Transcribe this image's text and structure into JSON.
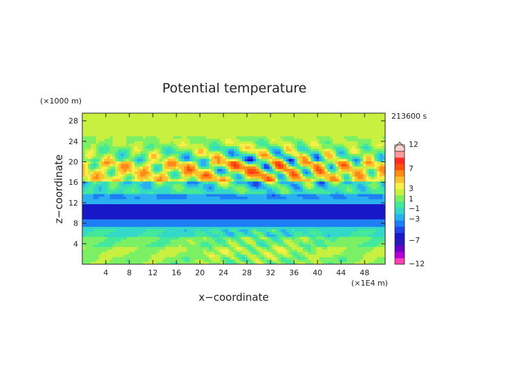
{
  "chart_data": {
    "type": "heatmap",
    "title": "Potential temperature",
    "xlabel": "x−coordinate",
    "ylabel": "z−coordinate",
    "x_unit": "(×1E4 m)",
    "y_unit": "(×1000 m)",
    "time_label": "213600 s",
    "xlim": [
      0,
      51.5
    ],
    "ylim": [
      0,
      29.5
    ],
    "x_ticks": [
      "4",
      "8",
      "12",
      "16",
      "20",
      "24",
      "28",
      "32",
      "36",
      "40",
      "44",
      "48"
    ],
    "y_ticks": [
      "4",
      "8",
      "12",
      "16",
      "20",
      "24",
      "28"
    ],
    "colorbar": {
      "levels": [
        -12,
        -11,
        -9,
        -7,
        -6,
        -5,
        -4,
        -3,
        -2,
        -1,
        0,
        1,
        2,
        3,
        5,
        7,
        9,
        11,
        12
      ],
      "colors": [
        "#ff3fb4",
        "#b000d6",
        "#6a00c8",
        "#2a1ab8",
        "#1818c8",
        "#1f45e6",
        "#1e7ef4",
        "#2ab0f0",
        "#34d8c8",
        "#44e89a",
        "#7cf064",
        "#c8f040",
        "#f8f04a",
        "#ffc030",
        "#ff8a18",
        "#ff5010",
        "#ff2a20",
        "#ff9a9a",
        "#ffd0d0"
      ],
      "tick_labels": [
        "12",
        "7",
        "3",
        "1",
        "−1",
        "−3",
        "−7",
        "−12"
      ]
    },
    "bands": [
      {
        "z": [
          0,
          1.5
        ],
        "value": 0.6
      },
      {
        "z": [
          1.5,
          3.5
        ],
        "value": 1.0
      },
      {
        "z": [
          3.5,
          5.5
        ],
        "value": 0.3
      },
      {
        "z": [
          5.5,
          7.5
        ],
        "value": -1.2
      },
      {
        "z": [
          7.5,
          9.0
        ],
        "value": -3.5
      },
      {
        "z": [
          9.0,
          12.0
        ],
        "value": -5.5
      },
      {
        "z": [
          12.0,
          14.0
        ],
        "value": -3.0
      },
      {
        "z": [
          14.0,
          16.0
        ],
        "value": -1.0
      },
      {
        "z": [
          16.0,
          20.0
        ],
        "value": 2.5
      },
      {
        "z": [
          20.0,
          23.0
        ],
        "value": 0.5
      },
      {
        "z": [
          23.0,
          29.5
        ],
        "value": 1.0
      }
    ]
  }
}
